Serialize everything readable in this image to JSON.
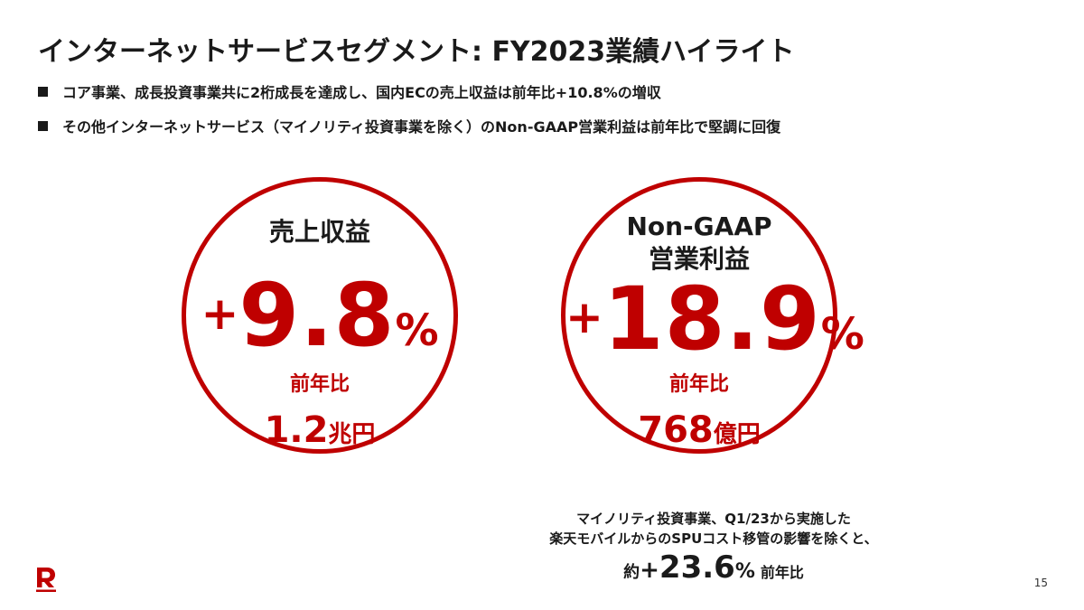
{
  "slide": {
    "title": "インターネットサービスセグメント: FY2023業績ハイライト",
    "bullets": [
      "コア事業、成長投資事業共に2桁成長を達成し、国内ECの売上収益は前年比+10.8%の増収",
      "その他インターネットサービス（マイノリティ投資事業を除く）のNon-GAAP営業利益は前年比で堅調に回復"
    ],
    "revenue": {
      "label": "売上収益",
      "sign": "+",
      "growth": "9.8",
      "pct": "%",
      "yoy_label": "前年比",
      "amount": "1.2",
      "amount_unit": "兆円"
    },
    "op_income": {
      "label_line1": "Non-GAAP",
      "label_line2": "営業利益",
      "sign": "+",
      "growth": "18.9",
      "pct": "%",
      "yoy_label": "前年比",
      "amount": "768",
      "amount_unit": "億円"
    },
    "note": {
      "line1": "マイノリティ投資事業、Q1/23から実施した",
      "line2": "楽天モバイルからのSPUコスト移管の影響を除くと、",
      "prefix": "約",
      "sign": "+",
      "value": "23.6",
      "pct": "%",
      "suffix": "前年比"
    },
    "page_number": "15",
    "logo_icon": "rakuten-r-logo-icon",
    "accent_color": "#bf0000"
  }
}
